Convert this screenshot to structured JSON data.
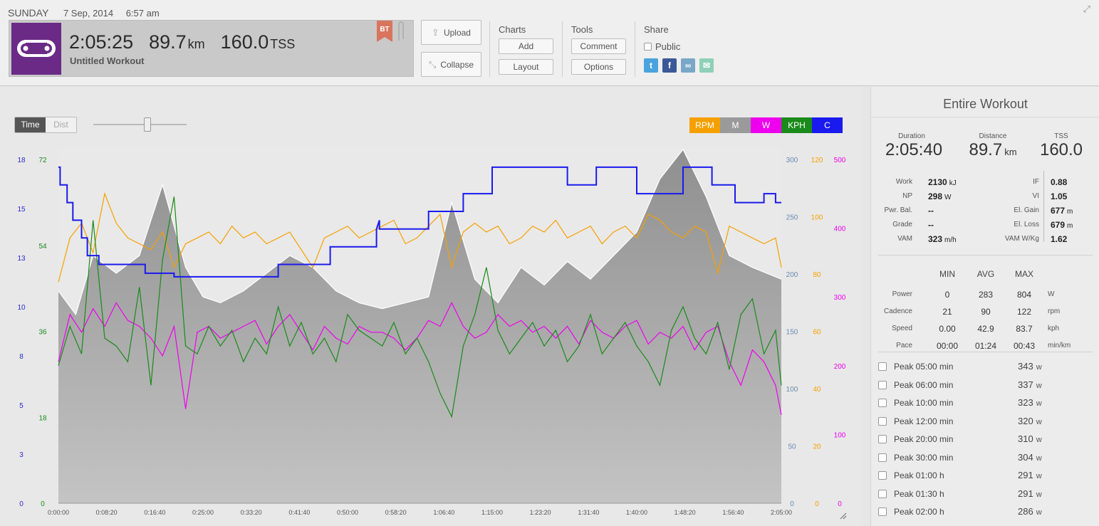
{
  "header": {
    "day": "SUNDAY",
    "date": "7 Sep, 2014",
    "time": "6:57 am",
    "duration": "2:05:25",
    "distance": "89.7",
    "distance_unit": "km",
    "tss": "160.0",
    "tss_unit": "TSS",
    "workout_title": "Untitled Workout",
    "badge": "BT",
    "upload_label": "Upload",
    "collapse_label": "Collapse",
    "charts_title": "Charts",
    "add_label": "Add",
    "layout_label": "Layout",
    "tools_title": "Tools",
    "comment_label": "Comment",
    "options_label": "Options",
    "share_title": "Share",
    "public_label": "Public"
  },
  "chart_controls": {
    "time_label": "Time",
    "dist_label": "Dist",
    "zoom_level": 0.58
  },
  "legend": [
    {
      "label": "RPM",
      "color": "#f5a000"
    },
    {
      "label": "M",
      "color": "#9a9a9a"
    },
    {
      "label": "W",
      "color": "#ee00ee"
    },
    {
      "label": "KPH",
      "color": "#1a8a1a"
    },
    {
      "label": "C",
      "color": "#1a1aee"
    }
  ],
  "chart_data": {
    "type": "line",
    "x_ticks": [
      "0:00:00",
      "0:08:20",
      "0:16:40",
      "0:25:00",
      "0:33:20",
      "0:41:40",
      "0:50:00",
      "0:58:20",
      "1:06:40",
      "1:15:00",
      "1:23:20",
      "1:31:40",
      "1:40:00",
      "1:48:20",
      "1:56:40",
      "2:05:00"
    ],
    "xlim_min": [
      0,
      125
    ],
    "axes": {
      "c_left": {
        "ticks": [
          "0",
          "3",
          "5",
          "8",
          "10",
          "13",
          "15",
          "18"
        ],
        "color": "#2a2ad0"
      },
      "kph": {
        "ticks": [
          "0",
          "18",
          "36",
          "54",
          "72"
        ],
        "color": "#1a8a1a",
        "range": [
          0,
          90
        ]
      },
      "m": {
        "ticks": [
          "0",
          "50",
          "100",
          "150",
          "200",
          "250",
          "300"
        ],
        "color": "#6a8ab0",
        "range": [
          0,
          300
        ]
      },
      "rpm": {
        "ticks": [
          "0",
          "20",
          "40",
          "60",
          "80",
          "100",
          "120"
        ],
        "color": "#f5a000",
        "range": [
          0,
          120
        ]
      },
      "w": {
        "ticks": [
          "0",
          "100",
          "200",
          "300",
          "400",
          "500"
        ],
        "color": "#ee00ee",
        "range": [
          0,
          600
        ]
      }
    },
    "series": [
      {
        "name": "M",
        "axis": "m",
        "x": [
          0,
          3,
          6,
          10,
          14,
          18,
          22,
          25,
          28,
          32,
          36,
          40,
          44,
          48,
          52,
          56,
          60,
          64,
          68,
          72,
          76,
          80,
          84,
          88,
          92,
          96,
          100,
          104,
          108,
          112,
          116,
          120,
          125
        ],
        "values": [
          180,
          160,
          210,
          195,
          210,
          270,
          200,
          175,
          170,
          180,
          195,
          210,
          200,
          180,
          170,
          165,
          170,
          175,
          255,
          190,
          170,
          200,
          185,
          205,
          190,
          210,
          230,
          275,
          300,
          260,
          210,
          200,
          190
        ]
      },
      {
        "name": "RPM",
        "axis": "rpm",
        "x": [
          0,
          2,
          4,
          6,
          8,
          10,
          12,
          14,
          16,
          18,
          20,
          22,
          24,
          26,
          28,
          30,
          32,
          34,
          36,
          38,
          40,
          42,
          44,
          46,
          48,
          50,
          52,
          54,
          56,
          58,
          60,
          62,
          64,
          66,
          68,
          70,
          72,
          74,
          76,
          78,
          80,
          82,
          84,
          86,
          88,
          90,
          92,
          94,
          96,
          98,
          100,
          102,
          104,
          106,
          108,
          110,
          112,
          114,
          116,
          118,
          120,
          122,
          124,
          125
        ],
        "values": [
          75,
          90,
          95,
          85,
          105,
          95,
          90,
          88,
          86,
          92,
          80,
          88,
          90,
          92,
          88,
          94,
          90,
          92,
          88,
          90,
          92,
          86,
          80,
          90,
          92,
          94,
          90,
          92,
          94,
          96,
          88,
          90,
          94,
          98,
          80,
          92,
          95,
          92,
          94,
          88,
          90,
          94,
          92,
          96,
          90,
          92,
          94,
          88,
          92,
          94,
          90,
          98,
          96,
          92,
          90,
          94,
          92,
          78,
          94,
          92,
          90,
          88,
          90,
          80
        ]
      },
      {
        "name": "W",
        "axis": "w",
        "x": [
          0,
          2,
          4,
          6,
          8,
          10,
          12,
          14,
          16,
          18,
          20,
          22,
          24,
          26,
          28,
          30,
          32,
          34,
          36,
          38,
          40,
          42,
          44,
          46,
          48,
          50,
          52,
          54,
          56,
          58,
          60,
          62,
          64,
          66,
          68,
          70,
          72,
          74,
          76,
          78,
          80,
          82,
          84,
          86,
          88,
          90,
          92,
          94,
          96,
          98,
          100,
          102,
          104,
          106,
          108,
          110,
          112,
          114,
          116,
          118,
          120,
          122,
          124,
          125
        ],
        "values": [
          240,
          320,
          290,
          330,
          300,
          340,
          310,
          300,
          280,
          250,
          300,
          160,
          290,
          300,
          280,
          290,
          300,
          310,
          270,
          300,
          320,
          290,
          260,
          300,
          280,
          270,
          300,
          290,
          290,
          280,
          260,
          280,
          310,
          300,
          340,
          300,
          280,
          290,
          320,
          300,
          310,
          290,
          300,
          280,
          300,
          270,
          310,
          290,
          280,
          300,
          310,
          270,
          290,
          280,
          300,
          260,
          290,
          300,
          240,
          200,
          260,
          240,
          200,
          150
        ]
      },
      {
        "name": "KPH",
        "axis": "kph",
        "x": [
          0,
          2,
          4,
          6,
          8,
          10,
          12,
          14,
          16,
          18,
          20,
          22,
          24,
          26,
          28,
          30,
          32,
          34,
          36,
          38,
          40,
          42,
          44,
          46,
          48,
          50,
          52,
          54,
          56,
          58,
          60,
          62,
          64,
          66,
          68,
          70,
          72,
          74,
          76,
          78,
          80,
          82,
          84,
          86,
          88,
          90,
          92,
          94,
          96,
          98,
          100,
          102,
          104,
          106,
          108,
          110,
          112,
          114,
          116,
          118,
          120,
          122,
          124,
          125
        ],
        "values": [
          35,
          45,
          38,
          72,
          42,
          40,
          36,
          55,
          30,
          62,
          78,
          40,
          38,
          45,
          40,
          44,
          36,
          42,
          38,
          50,
          40,
          46,
          38,
          42,
          36,
          48,
          44,
          42,
          40,
          46,
          38,
          42,
          36,
          28,
          22,
          40,
          48,
          60,
          44,
          38,
          42,
          46,
          40,
          44,
          36,
          40,
          48,
          38,
          42,
          46,
          40,
          36,
          30,
          44,
          50,
          42,
          38,
          46,
          34,
          48,
          52,
          38,
          44,
          30
        ]
      },
      {
        "name": "C",
        "axis": "c_left",
        "x": [
          0,
          0.3,
          0.3,
          1.5,
          1.5,
          2.5,
          2.5,
          4,
          4,
          5,
          5,
          7,
          7,
          15,
          15,
          20,
          20,
          38,
          38,
          47,
          47,
          55,
          55,
          55.5,
          55.5,
          64,
          64,
          70,
          70,
          75,
          75,
          88,
          88,
          93,
          93,
          100,
          100,
          108,
          108,
          113,
          113,
          117,
          117,
          122,
          122,
          124,
          124,
          125
        ],
        "values": [
          19,
          19,
          18,
          18,
          17,
          17,
          16,
          16,
          15,
          15,
          14,
          14,
          13.5,
          13.5,
          13,
          13,
          12.8,
          12.8,
          13.5,
          13.5,
          14.5,
          14.5,
          15.5,
          16,
          15.5,
          15.5,
          16.5,
          16.5,
          17.5,
          17.5,
          19,
          19,
          18,
          18,
          19,
          19,
          17.5,
          17.5,
          19,
          19,
          18,
          18,
          17,
          17,
          17.5,
          17.5,
          17,
          17
        ]
      }
    ]
  },
  "right": {
    "title": "Entire Workout",
    "duration_label": "Duration",
    "duration": "2:05:40",
    "distance_label": "Distance",
    "distance": "89.7",
    "distance_unit": "km",
    "tss_label": "TSS",
    "tss": "160.0",
    "metrics_left": [
      {
        "label": "Work",
        "value": "2130",
        "unit": "kJ"
      },
      {
        "label": "NP",
        "value": "298",
        "unit": "W"
      },
      {
        "label": "Pwr. Bal.",
        "value": "--",
        "unit": ""
      },
      {
        "label": "Grade",
        "value": "--",
        "unit": ""
      },
      {
        "label": "VAM",
        "value": "323",
        "unit": "m/h"
      }
    ],
    "metrics_right": [
      {
        "label": "IF",
        "value": "0.88",
        "unit": ""
      },
      {
        "label": "VI",
        "value": "1.05",
        "unit": ""
      },
      {
        "label": "El. Gain",
        "value": "677",
        "unit": "m"
      },
      {
        "label": "El. Loss",
        "value": "679",
        "unit": "m"
      },
      {
        "label": "VAM W/Kg",
        "value": "1.62",
        "unit": ""
      }
    ],
    "mma_headers": [
      "MIN",
      "AVG",
      "MAX"
    ],
    "mma_rows": [
      {
        "label": "Power",
        "min": "0",
        "avg": "283",
        "max": "804",
        "unit": "W"
      },
      {
        "label": "Cadence",
        "min": "21",
        "avg": "90",
        "max": "122",
        "unit": "rpm"
      },
      {
        "label": "Speed",
        "min": "0.00",
        "avg": "42.9",
        "max": "83.7",
        "unit": "kph"
      },
      {
        "label": "Pace",
        "min": "00:00",
        "avg": "01:24",
        "max": "00:43",
        "unit": "min/km"
      }
    ],
    "peaks": [
      {
        "label": "Peak 05:00 min",
        "value": "343",
        "unit": "w"
      },
      {
        "label": "Peak 06:00 min",
        "value": "337",
        "unit": "w"
      },
      {
        "label": "Peak 10:00 min",
        "value": "323",
        "unit": "w"
      },
      {
        "label": "Peak 12:00 min",
        "value": "320",
        "unit": "w"
      },
      {
        "label": "Peak 20:00 min",
        "value": "310",
        "unit": "w"
      },
      {
        "label": "Peak 30:00 min",
        "value": "304",
        "unit": "w"
      },
      {
        "label": "Peak 01:00 h",
        "value": "291",
        "unit": "w"
      },
      {
        "label": "Peak 01:30 h",
        "value": "291",
        "unit": "w"
      },
      {
        "label": "Peak 02:00 h",
        "value": "286",
        "unit": "w"
      }
    ]
  }
}
